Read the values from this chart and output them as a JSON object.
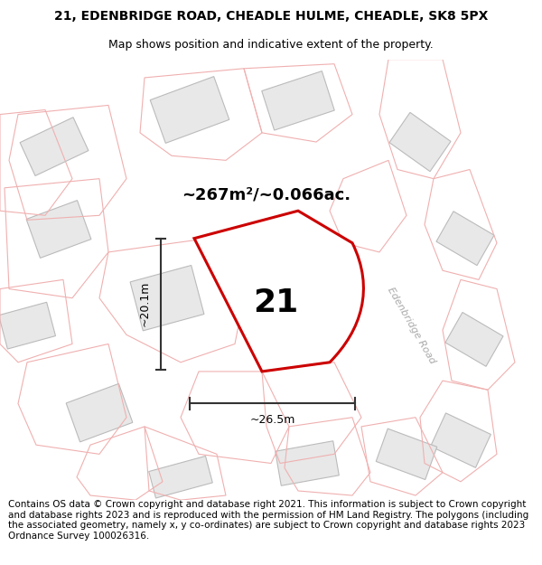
{
  "title_line1": "21, EDENBRIDGE ROAD, CHEADLE HULME, CHEADLE, SK8 5PX",
  "title_line2": "Map shows position and indicative extent of the property.",
  "footer_text": "Contains OS data © Crown copyright and database right 2021. This information is subject to Crown copyright and database rights 2023 and is reproduced with the permission of HM Land Registry. The polygons (including the associated geometry, namely x, y co-ordinates) are subject to Crown copyright and database rights 2023 Ordnance Survey 100026316.",
  "area_label": "~267m²/~0.066ac.",
  "number_label": "21",
  "width_label": "~26.5m",
  "height_label": "~20.1m",
  "road_label": "Edenbridge Road",
  "map_bg": "#ffffff",
  "plot_outline_color": "#cc0000",
  "plot_line_color": "#f0b0b0",
  "building_color": "#e8e8e8",
  "building_edge": "#bbbbbb",
  "road_area_color": "#f0f0f0",
  "fig_bg": "#ffffff",
  "title_fontsize": 10,
  "footer_fontsize": 7.5
}
